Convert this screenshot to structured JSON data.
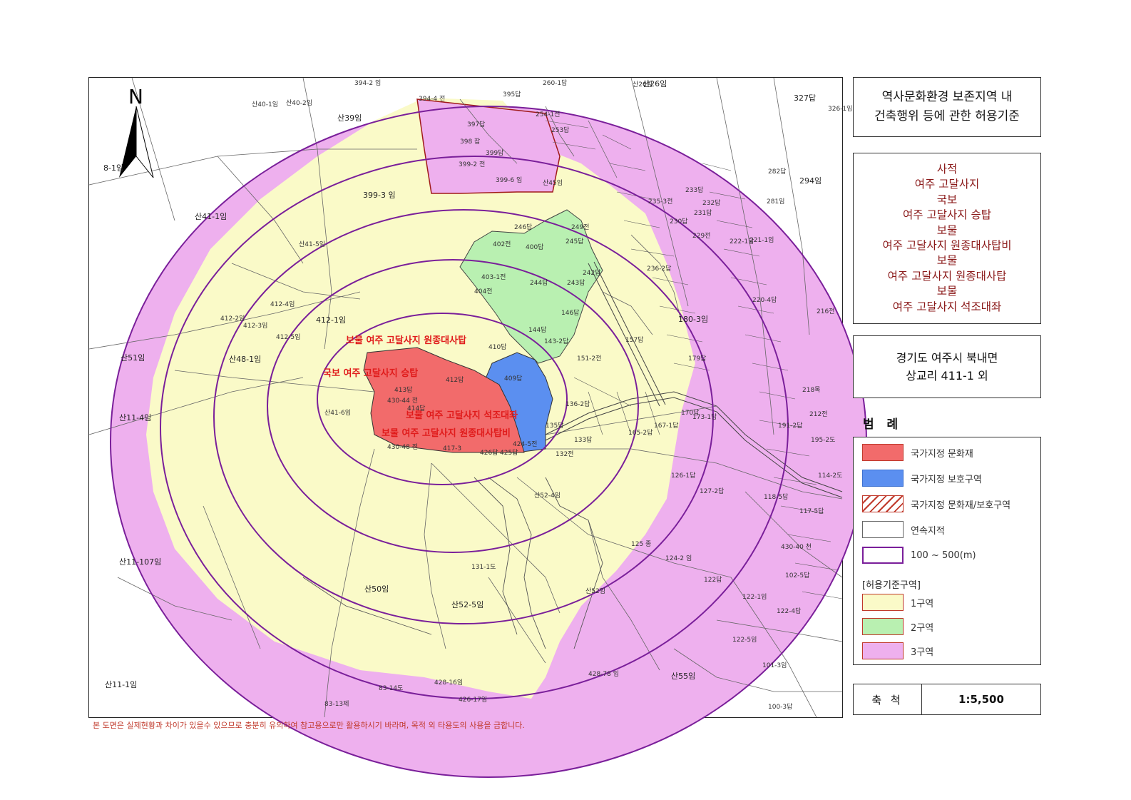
{
  "title": {
    "line1": "역사문화환경 보존지역 내",
    "line2": "건축행위 등에 관한 허용기준"
  },
  "heritage": [
    "사적",
    "여주 고달사지",
    "국보",
    "여주 고달사지 승탑",
    "보물",
    "여주 고달사지 원종대사탑비",
    "보물",
    "여주 고달사지 원종대사탑",
    "보물",
    "여주 고달사지 석조대좌"
  ],
  "location": {
    "line1": "경기도 여주시 북내면",
    "line2": "상교리 411-1 외"
  },
  "legend": {
    "heading": "범 례",
    "items": [
      {
        "label": "국가지정 문화재",
        "color": "#f26b6b"
      },
      {
        "label": "국가지정 보호구역",
        "color": "#5b8ff0"
      },
      {
        "label": "국가지정 문화재/보호구역",
        "color": "hatch"
      },
      {
        "label": "연속지적",
        "color": "#ffffff"
      },
      {
        "label": "100 ~ 500(m)",
        "color": "#ffffff"
      }
    ],
    "zone_heading": "[허용기준구역]",
    "zones": [
      {
        "label": "1구역",
        "color": "#fafac8"
      },
      {
        "label": "2구역",
        "color": "#b9f0b1"
      },
      {
        "label": "3구역",
        "color": "#eeb0ee"
      }
    ]
  },
  "scale": {
    "label": "축 척",
    "value": "1:5,500"
  },
  "disclaimer": "본 도면은 실제현황과 차이가 있을수 있으므로 충분히 유의하여 참고용으로만 활용하시기 바라며, 목적 외 타용도의 사용을 금합니다.",
  "map": {
    "north": "N",
    "heritage_labels": [
      "보물 여주 고달사지 원종대사탑",
      "국보 여주 고달사지 승탑",
      "보물 여주 고달사지 석조대좌",
      "보물 여주 고달사지 원종대사탑비"
    ],
    "parcels": [
      "394-2 임",
      "394-4 전",
      "395답",
      "397답",
      "398 잡",
      "399답",
      "399-2 전",
      "399-6 임",
      "399-3 임",
      "산39임",
      "산40-1임",
      "산40-2임",
      "8-1임",
      "산41-1임",
      "산41-5임",
      "412-1임",
      "412-2임",
      "412-3임",
      "412-4임",
      "412-5임",
      "산48-1임",
      "산51임",
      "산11-4임",
      "산11-107임",
      "산11-1임",
      "산41-6임",
      "산50임",
      "산52-5임",
      "산52-4임",
      "131-1도",
      "산52임",
      "428-78 임",
      "428-16임",
      "426-17임",
      "83-14도",
      "83-13제",
      "산55임",
      "101-3임",
      "100-3답",
      "122-5임",
      "122-1임",
      "122답",
      "124-2 임",
      "125 종",
      "180-3임",
      "179답",
      "170답",
      "157답",
      "151-2전",
      "136-2답",
      "132전",
      "133답",
      "135답",
      "410답",
      "409답",
      "412답",
      "413답",
      "414답",
      "424-5전",
      "425답",
      "426답",
      "430-48 전",
      "430-44 전",
      "417-3",
      "402전",
      "400답",
      "403-1전",
      "404전",
      "245답",
      "246답",
      "249전",
      "244답",
      "243답",
      "242답",
      "143-2답",
      "144답",
      "146답",
      "산45임",
      "253답",
      "254-1전",
      "260-1답",
      "산26임",
      "327답",
      "326-1임",
      "294임",
      "282답",
      "281임",
      "221-1임",
      "222-1답",
      "229전",
      "230답",
      "231답",
      "232답",
      "233답",
      "235-3전",
      "236-2답",
      "220-4답",
      "216전",
      "218목",
      "212전",
      "191-2답",
      "195-2도",
      "114-2도",
      "118-5답",
      "117-5답",
      "430-40 천",
      "102-5답",
      "122-4답",
      "165-2답",
      "167-1답",
      "173-1답",
      "126-1답",
      "127-2답",
      "산26임"
    ]
  }
}
